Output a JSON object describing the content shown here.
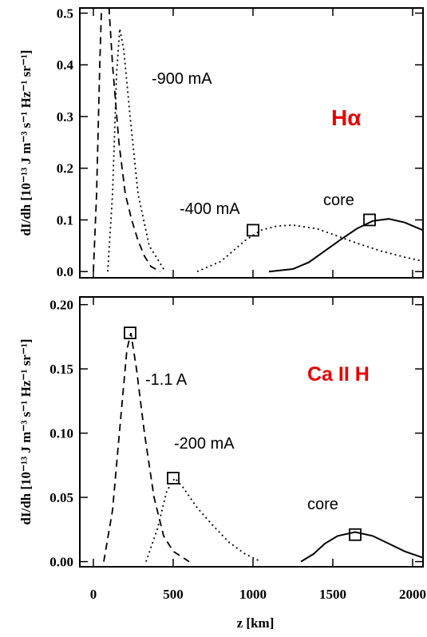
{
  "chart_data": [
    {
      "type": "line",
      "label": "Hα",
      "label_color": "#e60000",
      "ylabel": "dI/dh [10⁻¹³ J m⁻³ s⁻¹ Hz⁻¹ sr⁻¹]",
      "xlim": [
        -85,
        2065
      ],
      "xticks": [
        0,
        500,
        1000,
        1500,
        2000
      ],
      "ylim": [
        -0.012,
        0.51
      ],
      "yticks": [
        {
          "value": 0,
          "label": "0.0"
        },
        0.1,
        0.2,
        0.3,
        0.4,
        0.5
      ],
      "series": [
        {
          "style": "dashed",
          "color": "#000000",
          "x": [
            0,
            20,
            40,
            60,
            80,
            120,
            160,
            200,
            240,
            280,
            320,
            360,
            420
          ],
          "values": [
            0,
            0.15,
            0.4,
            0.6,
            0.6,
            0.4,
            0.25,
            0.15,
            0.1,
            0.06,
            0.03,
            0.01,
            0
          ]
        },
        {
          "name": "-900 mA",
          "style": "dotted",
          "color": "#000000",
          "x": [
            90,
            120,
            145,
            165,
            190,
            230,
            280,
            350,
            450
          ],
          "values": [
            0,
            0.15,
            0.38,
            0.47,
            0.43,
            0.3,
            0.15,
            0.05,
            0
          ]
        },
        {
          "name": "-400 mA",
          "style": "dotted",
          "color": "#000000",
          "x": [
            650,
            800,
            950,
            1050,
            1150,
            1250,
            1400,
            1500,
            1650,
            1800,
            1950,
            2065
          ],
          "values": [
            0,
            0.02,
            0.06,
            0.08,
            0.088,
            0.09,
            0.083,
            0.072,
            0.055,
            0.04,
            0.028,
            0.02
          ]
        },
        {
          "name": "core",
          "style": "solid",
          "color": "#000000",
          "x": [
            1100,
            1250,
            1350,
            1450,
            1550,
            1650,
            1750,
            1850,
            1950,
            2065
          ],
          "values": [
            0,
            0.005,
            0.018,
            0.04,
            0.062,
            0.083,
            0.098,
            0.102,
            0.095,
            0.08
          ]
        },
        {
          "style": "markers",
          "color": "#000000",
          "x": [
            1000,
            1730
          ],
          "values": [
            0.08,
            0.1
          ]
        }
      ]
    },
    {
      "type": "line",
      "label": "Ca II H",
      "label_color": "#e60000",
      "ylabel": "dI/dh [10⁻¹³ J m⁻³ s⁻¹ Hz⁻¹ sr⁻¹]",
      "xlabel": "z [km]",
      "xlim": [
        -85,
        2065
      ],
      "xticks": [
        0,
        500,
        1000,
        1500,
        2000
      ],
      "ylim": [
        -0.004,
        0.206
      ],
      "yticks": [
        {
          "value": 0,
          "label": "0.00"
        },
        0.05,
        {
          "value": 0.1,
          "label": "0.10"
        },
        0.15,
        {
          "value": 0.2,
          "label": "0.20"
        }
      ],
      "series": [
        {
          "name": "-1.1 A",
          "style": "dashed",
          "color": "#000000",
          "x": [
            65,
            120,
            170,
            210,
            235,
            270,
            320,
            380,
            440,
            500,
            600
          ],
          "values": [
            0,
            0.04,
            0.11,
            0.165,
            0.178,
            0.15,
            0.1,
            0.05,
            0.02,
            0.008,
            0
          ]
        },
        {
          "name": "-200 mA",
          "style": "dotted",
          "color": "#000000",
          "x": [
            330,
            400,
            460,
            510,
            560,
            650,
            750,
            850,
            950,
            1050
          ],
          "values": [
            0,
            0.025,
            0.055,
            0.065,
            0.058,
            0.042,
            0.028,
            0.015,
            0.006,
            0
          ]
        },
        {
          "name": "core",
          "style": "solid",
          "color": "#000000",
          "x": [
            1300,
            1380,
            1450,
            1530,
            1640,
            1750,
            1850,
            1950,
            2065
          ],
          "values": [
            0,
            0.006,
            0.014,
            0.02,
            0.023,
            0.02,
            0.014,
            0.008,
            0.003
          ]
        },
        {
          "style": "markers",
          "color": "#000000",
          "x": [
            230,
            500,
            1640
          ],
          "values": [
            0.178,
            0.065,
            0.021
          ]
        }
      ]
    }
  ]
}
